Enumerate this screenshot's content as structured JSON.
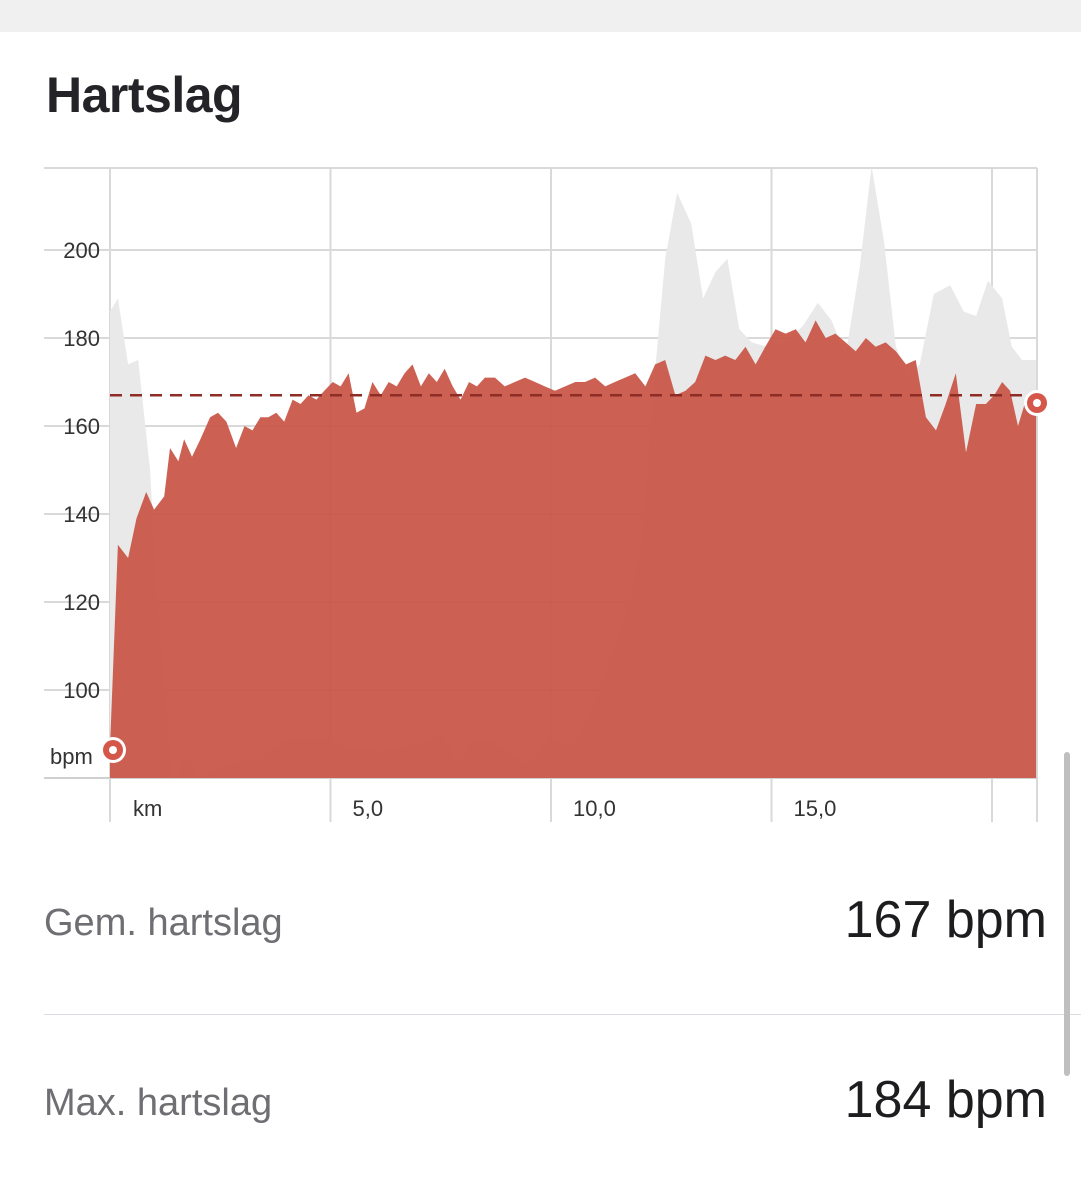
{
  "section": {
    "title": "Hartslag"
  },
  "colors": {
    "area_fill": "#c9584a",
    "area_fill_opacity": 0.95,
    "background_series": "#e9e9e9",
    "average_line": "#8e2d26",
    "marker": "#d4574a",
    "grid": "#d9d9d9"
  },
  "chart_data": {
    "type": "area",
    "xlabel": "km",
    "ylabel": "bpm",
    "x_ticks": [
      "5,0",
      "10,0",
      "15,0"
    ],
    "x_tick_values": [
      5,
      10,
      15
    ],
    "y_ticks": [
      "100",
      "120",
      "140",
      "160",
      "180",
      "200"
    ],
    "y_tick_values": [
      100,
      120,
      140,
      160,
      180,
      200
    ],
    "xlim": [
      0,
      21
    ],
    "ylim": [
      80,
      220
    ],
    "grid": true,
    "average": 167,
    "series": [
      {
        "role": "heart rate",
        "x": [
          0,
          0.18,
          0.41,
          0.6,
          0.82,
          1.0,
          1.23,
          1.36,
          1.55,
          1.68,
          1.86,
          2.05,
          2.27,
          2.45,
          2.64,
          2.86,
          3.05,
          3.23,
          3.41,
          3.59,
          3.77,
          3.95,
          4.14,
          4.32,
          4.5,
          4.68,
          4.86,
          5.05,
          5.23,
          5.41,
          5.59,
          5.77,
          5.95,
          6.14,
          6.32,
          6.5,
          6.68,
          6.86,
          7.05,
          7.23,
          7.41,
          7.59,
          7.77,
          7.95,
          8.14,
          8.32,
          8.5,
          8.73,
          8.95,
          9.18,
          9.41,
          9.64,
          9.86,
          10.09,
          10.32,
          10.55,
          10.77,
          11.0,
          11.23,
          11.45,
          11.68,
          11.91,
          12.14,
          12.36,
          12.59,
          12.82,
          13.05,
          13.27,
          13.5,
          13.73,
          13.95,
          14.18,
          14.41,
          14.64,
          14.86,
          15.09,
          15.32,
          15.55,
          15.77,
          16.0,
          16.23,
          16.45,
          16.68,
          16.91,
          17.14,
          17.36,
          17.59,
          17.82,
          18.05,
          18.27,
          18.5,
          18.73,
          18.95,
          19.18,
          19.41,
          19.64,
          19.86,
          20.05,
          20.23,
          20.41,
          20.59,
          20.77,
          21.0
        ],
        "values": [
          87,
          133,
          130,
          139,
          145,
          141,
          144,
          155,
          152,
          157,
          153,
          157,
          162,
          163,
          161,
          155,
          160,
          159,
          162,
          162,
          163,
          161,
          166,
          165,
          167,
          166,
          168,
          170,
          169,
          172,
          163,
          164,
          170,
          167,
          170,
          169,
          172,
          174,
          169,
          172,
          170,
          173,
          169,
          166,
          170,
          169,
          171,
          171,
          169,
          170,
          171,
          170,
          169,
          168,
          169,
          170,
          170,
          171,
          169,
          170,
          171,
          172,
          169,
          174,
          175,
          167,
          168,
          170,
          176,
          175,
          176,
          175,
          178,
          174,
          178,
          182,
          181,
          182,
          179,
          184,
          180,
          181,
          179,
          177,
          180,
          178,
          179,
          177,
          174,
          175,
          162,
          159,
          165,
          172,
          154,
          165,
          165,
          167,
          170,
          168,
          160,
          166,
          166
        ]
      },
      {
        "role": "background",
        "x": [
          0,
          0.18,
          0.41,
          0.64,
          0.91,
          1.05,
          1.27,
          1.41,
          1.55,
          1.68,
          1.86,
          2.05,
          2.36,
          2.68,
          3.0,
          3.36,
          3.73,
          4.05,
          4.41,
          4.86,
          5.36,
          5.91,
          6.14,
          6.5,
          7.05,
          7.55,
          7.91,
          8.14,
          8.59,
          9.05,
          9.45,
          9.95,
          10.45,
          10.91,
          11.36,
          11.77,
          12.05,
          12.32,
          12.59,
          12.86,
          13.18,
          13.45,
          13.73,
          14.0,
          14.27,
          14.55,
          14.91,
          15.36,
          15.73,
          16.05,
          16.36,
          16.68,
          17.0,
          17.27,
          17.55,
          17.82,
          18.09,
          18.36,
          18.68,
          19.05,
          19.36,
          19.64,
          19.91,
          20.23,
          20.45,
          20.68,
          21.0
        ],
        "values": [
          186,
          189,
          174,
          175,
          150,
          124,
          98,
          80,
          81,
          85,
          83,
          80,
          82,
          83,
          84,
          84,
          87,
          89,
          89,
          89,
          87,
          87,
          86,
          87,
          88,
          90,
          83,
          88,
          89,
          86,
          83,
          89,
          87,
          95,
          108,
          120,
          134,
          168,
          198,
          213,
          206,
          189,
          195,
          198,
          182,
          179,
          178,
          179,
          183,
          188,
          184,
          176,
          196,
          219,
          202,
          178,
          171,
          174,
          190,
          192,
          186,
          185,
          193,
          189,
          178,
          175,
          175
        ]
      }
    ]
  },
  "stats": [
    {
      "label": "Gem. hartslag",
      "value": "167 bpm"
    },
    {
      "label": "Max. hartslag",
      "value": "184 bpm"
    }
  ]
}
